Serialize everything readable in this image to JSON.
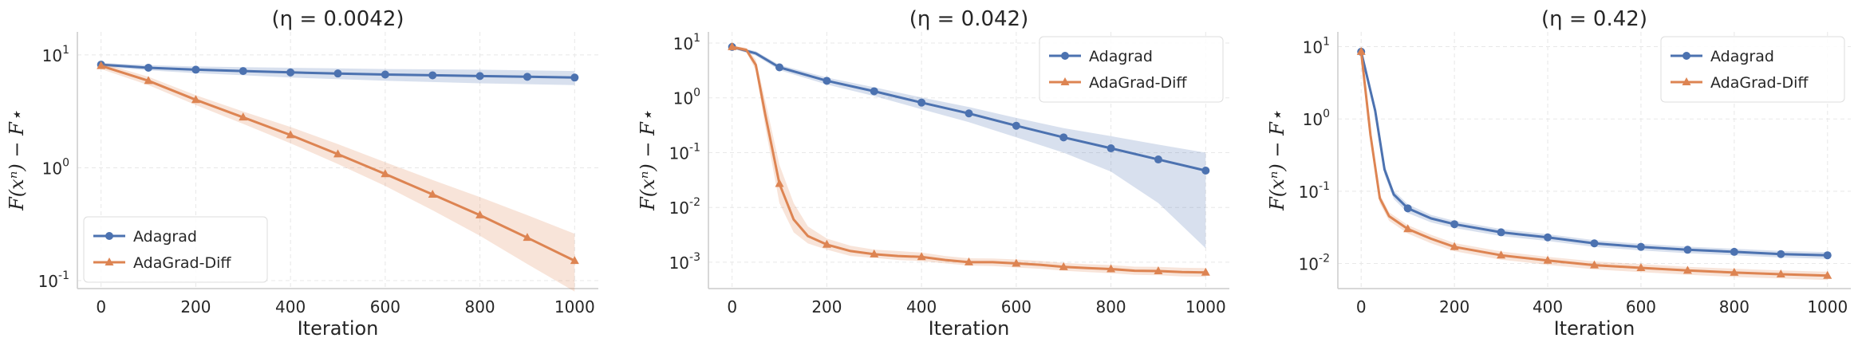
{
  "chart_data": [
    {
      "type": "line",
      "title": "(η = 0.0042)",
      "xlabel": "Iteration",
      "ylabel": "F(xⁿ) − F⋆",
      "yscale": "log",
      "xlim": [
        -50,
        1050
      ],
      "ylim": [
        0.085,
        16
      ],
      "xticks": [
        0,
        200,
        400,
        600,
        800,
        1000
      ],
      "yticks": [
        {
          "base": "10",
          "exp": "-1",
          "value": 0.1
        },
        {
          "base": "10",
          "exp": "0",
          "value": 1
        },
        {
          "base": "10",
          "exp": "1",
          "value": 10
        }
      ],
      "legend_position": "lower-left",
      "series": [
        {
          "name": "Adagrad",
          "color": "#4c72b0",
          "marker": "circle",
          "x": [
            0,
            100,
            200,
            300,
            400,
            500,
            600,
            700,
            800,
            900,
            1000
          ],
          "y": [
            8.2,
            7.7,
            7.4,
            7.2,
            7.0,
            6.85,
            6.7,
            6.6,
            6.5,
            6.4,
            6.3
          ],
          "lower": [
            7.9,
            7.3,
            6.9,
            6.6,
            6.3,
            6.1,
            5.9,
            5.75,
            5.6,
            5.5,
            5.4
          ],
          "upper": [
            8.5,
            8.1,
            7.9,
            7.8,
            7.7,
            7.6,
            7.5,
            7.45,
            7.4,
            7.3,
            7.2
          ]
        },
        {
          "name": "AdaGrad-Diff",
          "color": "#dd8452",
          "marker": "triangle",
          "x": [
            0,
            100,
            200,
            300,
            400,
            500,
            600,
            700,
            800,
            900,
            1000
          ],
          "y": [
            8.0,
            5.9,
            4.0,
            2.8,
            1.95,
            1.32,
            0.88,
            0.58,
            0.38,
            0.24,
            0.15
          ],
          "lower": [
            7.5,
            5.4,
            3.6,
            2.45,
            1.65,
            1.08,
            0.69,
            0.42,
            0.25,
            0.14,
            0.08
          ],
          "upper": [
            8.5,
            6.4,
            4.4,
            3.15,
            2.3,
            1.62,
            1.12,
            0.78,
            0.55,
            0.38,
            0.26
          ]
        }
      ]
    },
    {
      "type": "line",
      "title": "(η = 0.042)",
      "xlabel": "Iteration",
      "ylabel": "F(xⁿ) − F⋆",
      "yscale": "log",
      "xlim": [
        -50,
        1050
      ],
      "ylim": [
        0.00033,
        16
      ],
      "xticks": [
        0,
        200,
        400,
        600,
        800,
        1000
      ],
      "yticks": [
        {
          "base": "10",
          "exp": "-3",
          "value": 0.001
        },
        {
          "base": "10",
          "exp": "-2",
          "value": 0.01
        },
        {
          "base": "10",
          "exp": "-1",
          "value": 0.1
        },
        {
          "base": "10",
          "exp": "0",
          "value": 1
        },
        {
          "base": "10",
          "exp": "1",
          "value": 10
        }
      ],
      "legend_position": "upper-right",
      "series": [
        {
          "name": "Adagrad",
          "color": "#4c72b0",
          "marker": "circle",
          "x": [
            0,
            50,
            100,
            200,
            300,
            400,
            500,
            600,
            700,
            800,
            900,
            1000
          ],
          "y": [
            8.5,
            6.5,
            3.6,
            2.05,
            1.32,
            0.82,
            0.52,
            0.31,
            0.19,
            0.12,
            0.075,
            0.047
          ],
          "lower": [
            8.0,
            5.9,
            3.2,
            1.75,
            1.08,
            0.62,
            0.36,
            0.19,
            0.1,
            0.045,
            0.012,
            0.0018
          ],
          "upper": [
            9.0,
            7.1,
            4.0,
            2.35,
            1.56,
            1.02,
            0.68,
            0.43,
            0.28,
            0.2,
            0.14,
            0.1
          ]
        },
        {
          "name": "AdaGrad-Diff",
          "color": "#dd8452",
          "marker": "triangle",
          "x": [
            0,
            30,
            50,
            70,
            100,
            130,
            160,
            200,
            250,
            300,
            350,
            400,
            450,
            500,
            550,
            600,
            650,
            700,
            750,
            800,
            850,
            900,
            950,
            1000
          ],
          "y": [
            8.5,
            7.5,
            4.0,
            0.5,
            0.027,
            0.006,
            0.003,
            0.0021,
            0.0016,
            0.0014,
            0.0013,
            0.00125,
            0.0011,
            0.001,
            0.001,
            0.00095,
            0.0009,
            0.00082,
            0.00078,
            0.00075,
            0.0007,
            0.00069,
            0.00066,
            0.00065
          ],
          "lower": [
            8.0,
            6.8,
            3.2,
            0.3,
            0.012,
            0.0035,
            0.0022,
            0.0017,
            0.0013,
            0.0012,
            0.0011,
            0.00105,
            0.00095,
            0.00087,
            0.00085,
            0.0008,
            0.00076,
            0.0007,
            0.00066,
            0.00063,
            0.00059,
            0.00058,
            0.00055,
            0.00054
          ],
          "upper": [
            9.0,
            8.2,
            5.0,
            0.9,
            0.06,
            0.012,
            0.0045,
            0.0027,
            0.002,
            0.0017,
            0.0016,
            0.0015,
            0.0013,
            0.00118,
            0.00117,
            0.00112,
            0.00106,
            0.00097,
            0.00092,
            0.00089,
            0.00083,
            0.00082,
            0.00079,
            0.00078
          ]
        }
      ]
    },
    {
      "type": "line",
      "title": "(η = 0.42)",
      "xlabel": "Iteration",
      "ylabel": "F(xⁿ) − F⋆",
      "yscale": "log",
      "xlim": [
        -50,
        1050
      ],
      "ylim": [
        0.0045,
        16
      ],
      "xticks": [
        0,
        200,
        400,
        600,
        800,
        1000
      ],
      "yticks": [
        {
          "base": "10",
          "exp": "-2",
          "value": 0.01
        },
        {
          "base": "10",
          "exp": "-1",
          "value": 0.1
        },
        {
          "base": "10",
          "exp": "0",
          "value": 1
        },
        {
          "base": "10",
          "exp": "1",
          "value": 10
        }
      ],
      "legend_position": "upper-right",
      "series": [
        {
          "name": "Adagrad",
          "color": "#4c72b0",
          "marker": "circle",
          "x": [
            0,
            30,
            50,
            70,
            100,
            150,
            200,
            300,
            400,
            500,
            600,
            700,
            800,
            900,
            1000
          ],
          "y": [
            8.5,
            1.3,
            0.2,
            0.09,
            0.058,
            0.042,
            0.035,
            0.027,
            0.023,
            0.019,
            0.017,
            0.0155,
            0.0145,
            0.0135,
            0.013
          ],
          "lower": [
            8.0,
            1.1,
            0.17,
            0.078,
            0.05,
            0.037,
            0.031,
            0.024,
            0.0205,
            0.017,
            0.0152,
            0.0139,
            0.013,
            0.0121,
            0.0116
          ],
          "upper": [
            9.0,
            1.5,
            0.23,
            0.102,
            0.066,
            0.047,
            0.039,
            0.03,
            0.0255,
            0.021,
            0.0188,
            0.0171,
            0.016,
            0.0149,
            0.0144
          ]
        },
        {
          "name": "AdaGrad-Diff",
          "color": "#dd8452",
          "marker": "triangle",
          "x": [
            0,
            20,
            40,
            60,
            100,
            150,
            200,
            300,
            400,
            500,
            600,
            700,
            800,
            900,
            1000
          ],
          "y": [
            8.5,
            0.6,
            0.08,
            0.045,
            0.03,
            0.022,
            0.017,
            0.013,
            0.011,
            0.0095,
            0.0087,
            0.008,
            0.0075,
            0.0071,
            0.0068
          ],
          "lower": [
            8.0,
            0.5,
            0.068,
            0.039,
            0.026,
            0.019,
            0.0148,
            0.0113,
            0.0096,
            0.0083,
            0.0076,
            0.007,
            0.0065,
            0.0062,
            0.0059
          ],
          "upper": [
            9.0,
            0.7,
            0.092,
            0.051,
            0.034,
            0.025,
            0.0192,
            0.0147,
            0.0124,
            0.0107,
            0.0098,
            0.009,
            0.0085,
            0.008,
            0.0077
          ]
        }
      ]
    }
  ]
}
